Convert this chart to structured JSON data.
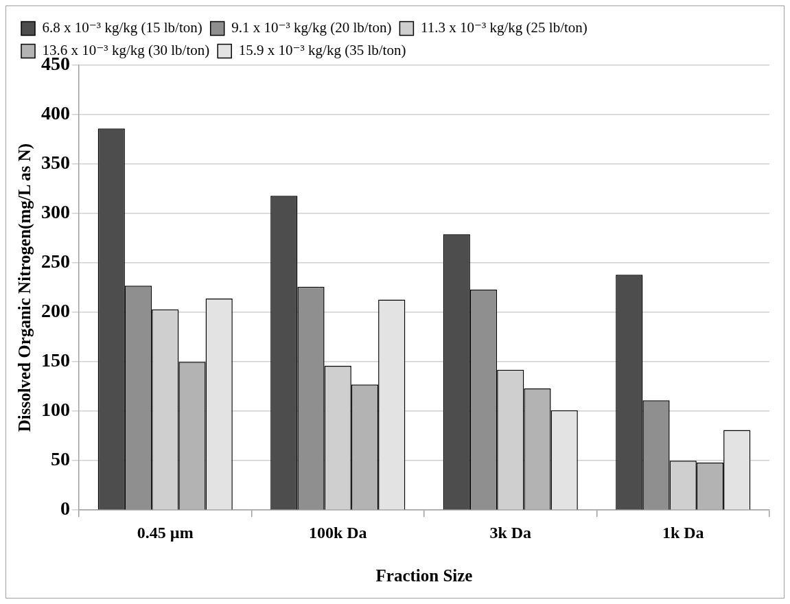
{
  "chart_data": {
    "type": "bar",
    "xlabel": "Fraction Size",
    "ylabel": "Dissolved Organic Nitrogen(mg/L as N)",
    "categories": [
      "0.45 µm",
      "100k Da",
      "3k Da",
      "1k Da"
    ],
    "series": [
      {
        "name": "6.8 x 10⁻³ kg/kg (15 lb/ton)",
        "color": "#4d4d4d",
        "values": [
          386,
          318,
          279,
          238
        ]
      },
      {
        "name": "9.1 x 10⁻³ kg/kg (20 lb/ton)",
        "color": "#8f8f8f",
        "values": [
          227,
          226,
          223,
          111
        ]
      },
      {
        "name": "11.3 x 10⁻³ kg/kg (25 lb/ton)",
        "color": "#cfcfcf",
        "values": [
          203,
          146,
          142,
          50
        ]
      },
      {
        "name": "13.6 x 10⁻³ kg/kg (30 lb/ton)",
        "color": "#b3b3b3",
        "values": [
          150,
          127,
          123,
          48
        ]
      },
      {
        "name": "15.9 x 10⁻³ kg/kg (35 lb/ton)",
        "color": "#e3e3e3",
        "values": [
          214,
          213,
          101,
          81
        ]
      }
    ],
    "ylim": [
      0,
      450
    ],
    "yticks": [
      0,
      50,
      100,
      150,
      200,
      250,
      300,
      350,
      400,
      450
    ],
    "grid": "y",
    "legend": "top"
  }
}
